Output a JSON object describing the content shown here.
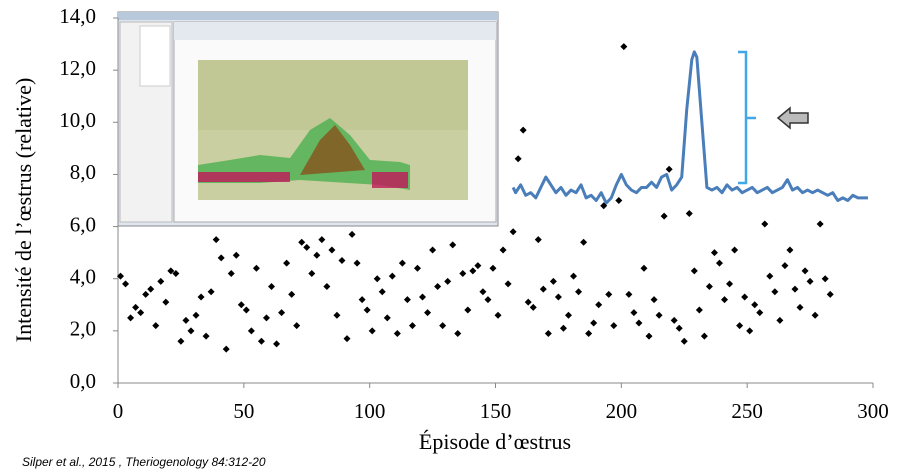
{
  "chart_data": {
    "type": "scatter",
    "y_label": "Intensité de l’œstrus (relative)",
    "x_label": "Épisode d’œstrus",
    "source": "Silper et al., 2015 , Theriogenology 84:312-20",
    "xlim": [
      0,
      300
    ],
    "xticks": [
      0,
      50,
      100,
      150,
      200,
      250,
      300
    ],
    "ylim": [
      0,
      14
    ],
    "yticks": [
      {
        "value": 0,
        "label": "0,0"
      },
      {
        "value": 2,
        "label": "2,0"
      },
      {
        "value": 4,
        "label": "4,0"
      },
      {
        "value": 6,
        "label": "6,0"
      },
      {
        "value": 8,
        "label": "8,0"
      },
      {
        "value": 10,
        "label": "10,0"
      },
      {
        "value": 12,
        "label": "12,0"
      },
      {
        "value": 14,
        "label": "14,0"
      }
    ],
    "points": {
      "color": "#000000",
      "x": [
        1,
        3,
        5,
        7,
        9,
        11,
        13,
        15,
        17,
        19,
        21,
        23,
        25,
        27,
        29,
        31,
        33,
        35,
        37,
        39,
        41,
        43,
        45,
        47,
        49,
        51,
        53,
        55,
        57,
        59,
        61,
        63,
        65,
        67,
        69,
        71,
        73,
        75,
        77,
        79,
        81,
        83,
        85,
        87,
        89,
        91,
        93,
        95,
        97,
        99,
        101,
        103,
        105,
        107,
        109,
        111,
        113,
        115,
        117,
        119,
        121,
        123,
        125,
        127,
        129,
        131,
        133,
        135,
        137,
        139,
        141,
        143,
        145,
        147,
        149,
        151,
        153,
        155,
        157,
        159,
        161,
        163,
        165,
        167,
        169,
        171,
        173,
        175,
        177,
        179,
        181,
        183,
        185,
        187,
        189,
        191,
        193,
        195,
        197,
        199,
        201,
        203,
        205,
        207,
        209,
        211,
        213,
        215,
        217,
        219,
        221,
        223,
        225,
        227,
        229,
        231,
        233,
        235,
        237,
        239,
        241,
        243,
        245,
        247,
        249,
        251,
        253,
        255,
        257,
        259,
        261,
        263,
        265,
        267,
        269,
        271,
        273,
        275,
        277,
        279,
        281,
        283
      ],
      "y": [
        4.1,
        3.8,
        2.5,
        2.9,
        2.7,
        3.4,
        3.6,
        2.2,
        3.9,
        3.1,
        4.3,
        4.2,
        1.6,
        2.4,
        2.0,
        2.6,
        3.3,
        1.8,
        3.5,
        5.5,
        4.8,
        1.3,
        4.2,
        4.9,
        3.0,
        2.8,
        2.0,
        4.4,
        1.6,
        2.5,
        3.7,
        1.5,
        2.7,
        4.6,
        3.4,
        2.2,
        5.4,
        5.2,
        4.2,
        4.9,
        5.5,
        3.7,
        5.1,
        2.6,
        4.7,
        1.7,
        5.7,
        4.6,
        3.2,
        2.8,
        2.0,
        4.0,
        3.5,
        2.5,
        4.1,
        1.9,
        4.6,
        3.2,
        2.2,
        4.4,
        3.3,
        2.7,
        5.1,
        3.7,
        2.2,
        3.9,
        5.3,
        1.9,
        4.2,
        2.8,
        4.3,
        4.5,
        3.5,
        3.2,
        4.4,
        2.6,
        5.1,
        3.8,
        5.8,
        8.6,
        9.7,
        3.1,
        2.9,
        5.5,
        3.6,
        1.9,
        3.9,
        3.3,
        2.1,
        2.6,
        4.1,
        3.5,
        5.4,
        1.9,
        2.3,
        3.0,
        6.8,
        3.4,
        2.2,
        7.0,
        12.9,
        3.4,
        2.7,
        2.3,
        4.4,
        1.8,
        3.2,
        2.6,
        6.4,
        8.2,
        2.4,
        2.1,
        1.6,
        6.5,
        4.3,
        2.8,
        1.8,
        3.7,
        5.0,
        4.6,
        3.2,
        3.8,
        5.1,
        2.2,
        3.3,
        2.0,
        3.0,
        2.7,
        6.1,
        4.1,
        3.5,
        2.4,
        4.5,
        5.1,
        3.6,
        2.9,
        4.3,
        3.9,
        2.6,
        6.1,
        4.0,
        3.4
      ]
    },
    "line": {
      "color": "#4a7ebb",
      "x": [
        157,
        158,
        160,
        162,
        164,
        166,
        168,
        170,
        172,
        174,
        176,
        178,
        180,
        182,
        184,
        186,
        188,
        190,
        192,
        194,
        196,
        198,
        200,
        202,
        204,
        206,
        208,
        210,
        212,
        214,
        216,
        218,
        220,
        222,
        224,
        226,
        228,
        229,
        230,
        232,
        234,
        236,
        238,
        240,
        242,
        244,
        246,
        248,
        250,
        252,
        254,
        256,
        258,
        260,
        262,
        264,
        266,
        268,
        270,
        272,
        274,
        276,
        278,
        280,
        282,
        284,
        286,
        288,
        290,
        292,
        294,
        296,
        298
      ],
      "y": [
        7.5,
        7.3,
        7.6,
        7.2,
        7.3,
        7.1,
        7.5,
        7.9,
        7.6,
        7.3,
        7.5,
        7.2,
        7.4,
        7.3,
        7.6,
        7.1,
        7.2,
        7.0,
        7.3,
        6.9,
        7.1,
        7.6,
        8.0,
        7.6,
        7.4,
        7.3,
        7.5,
        7.5,
        7.7,
        7.5,
        7.9,
        8.0,
        7.4,
        7.6,
        7.9,
        10.5,
        12.4,
        12.7,
        12.5,
        10.0,
        7.5,
        7.4,
        7.5,
        7.3,
        7.6,
        7.4,
        7.5,
        7.3,
        7.4,
        7.5,
        7.3,
        7.4,
        7.5,
        7.3,
        7.4,
        7.5,
        7.8,
        7.4,
        7.5,
        7.3,
        7.4,
        7.3,
        7.4,
        7.3,
        7.2,
        7.3,
        7.0,
        7.1,
        7.0,
        7.2,
        7.1,
        7.1,
        7.1
      ]
    }
  }
}
